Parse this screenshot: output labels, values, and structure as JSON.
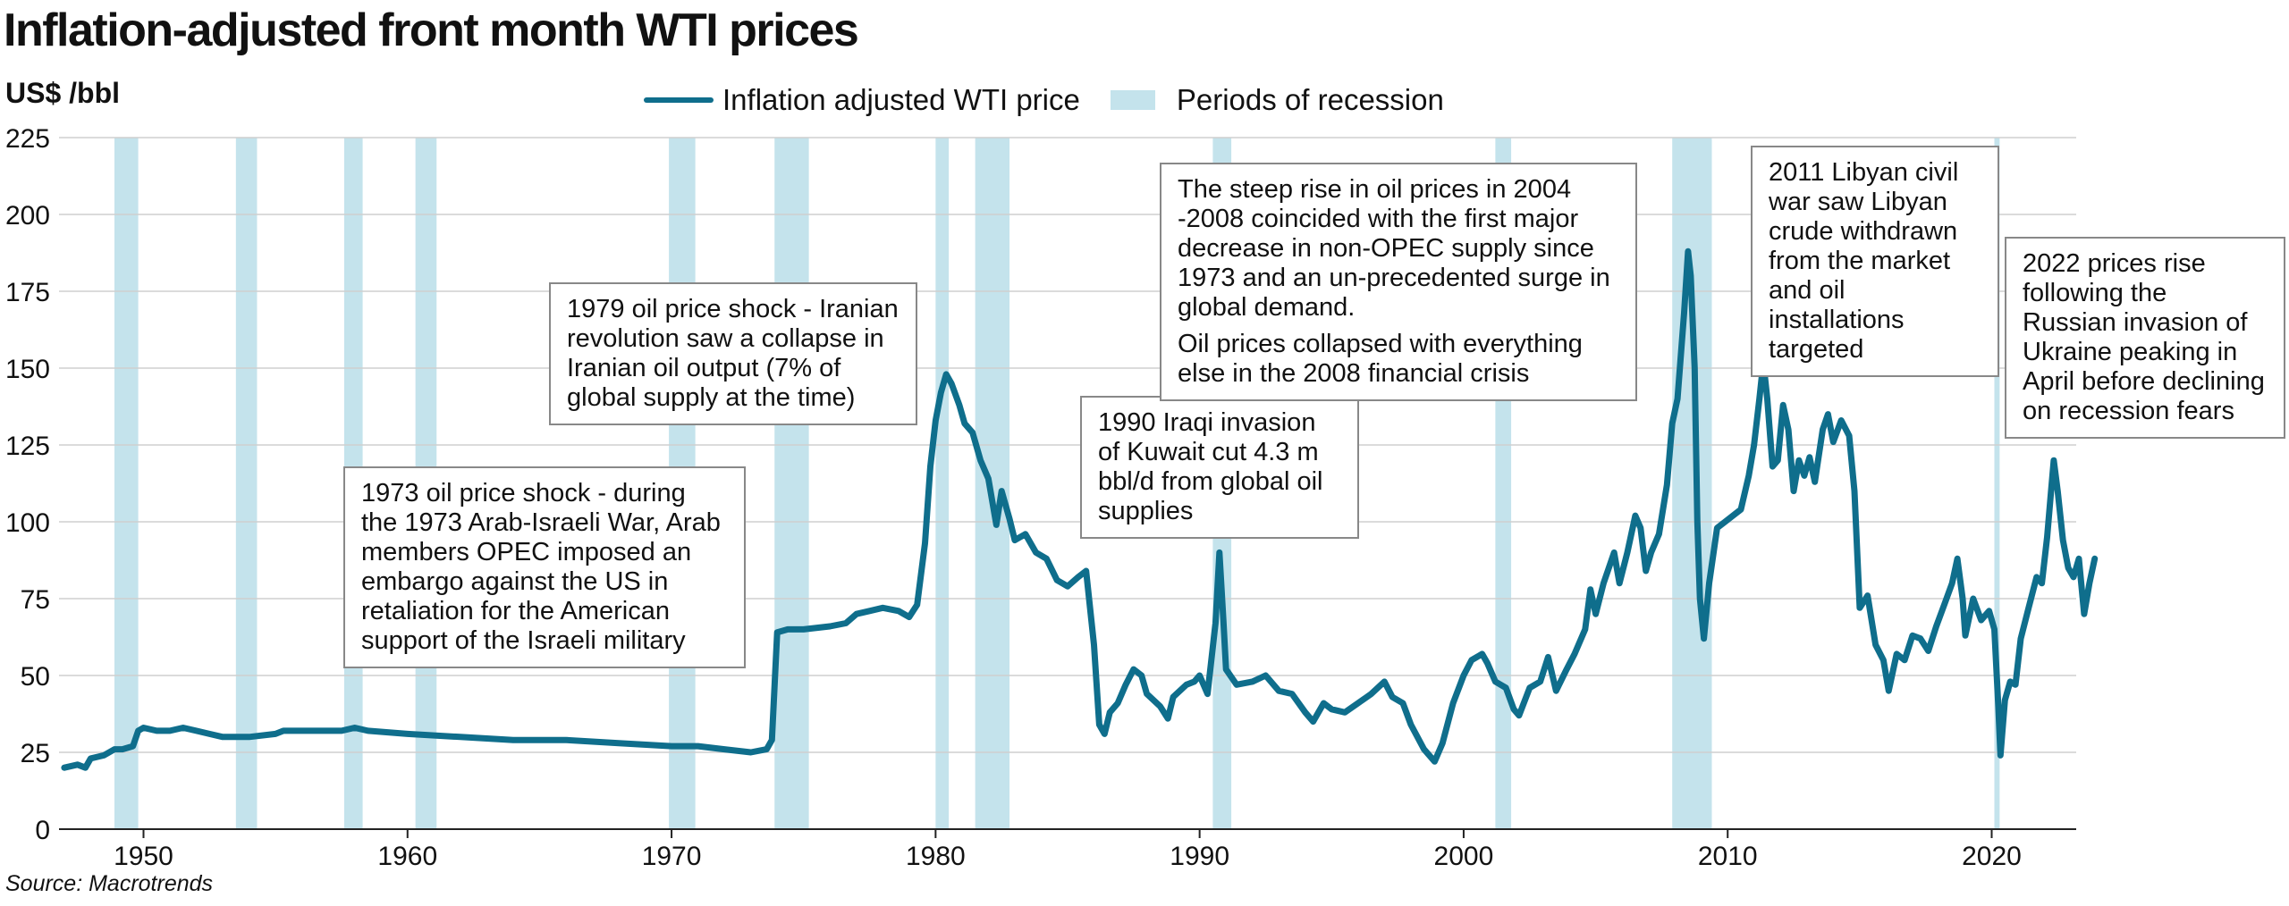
{
  "title": "Inflation-adjusted front month WTI prices",
  "y_unit": "US$ /bbl",
  "source": "Source: Macrotrends",
  "colors": {
    "line": "#0f6e8c",
    "recession": "#c4e3ec",
    "grid": "#cfcfcf"
  },
  "chart_data": {
    "type": "line",
    "title": "Inflation-adjusted front month WTI prices",
    "ylabel": "US$ /bbl",
    "ylim": [
      0,
      225
    ],
    "xlim": [
      1946.8,
      2023.2
    ],
    "yticks": [
      0,
      25,
      50,
      75,
      100,
      125,
      150,
      175,
      200,
      225
    ],
    "xticks": [
      1950,
      1960,
      1970,
      1980,
      1990,
      2000,
      2010,
      2020
    ],
    "grid": true,
    "legend": {
      "position": "top-center",
      "items": [
        {
          "label": "Inflation adjusted WTI price",
          "kind": "line"
        },
        {
          "label": "Periods of recession",
          "kind": "band"
        }
      ]
    },
    "series": [
      {
        "name": "Inflation adjusted WTI price",
        "points": [
          [
            1947.0,
            20
          ],
          [
            1947.5,
            21
          ],
          [
            1947.8,
            20
          ],
          [
            1948.0,
            23
          ],
          [
            1948.5,
            24
          ],
          [
            1948.9,
            26
          ],
          [
            1949.2,
            26
          ],
          [
            1949.6,
            27
          ],
          [
            1949.8,
            32
          ],
          [
            1950.0,
            33
          ],
          [
            1950.5,
            32
          ],
          [
            1951.0,
            32
          ],
          [
            1951.5,
            33
          ],
          [
            1952.0,
            32
          ],
          [
            1952.5,
            31
          ],
          [
            1953.0,
            30
          ],
          [
            1954.0,
            30
          ],
          [
            1955.0,
            31
          ],
          [
            1955.3,
            32
          ],
          [
            1956.0,
            32
          ],
          [
            1957.0,
            32
          ],
          [
            1957.5,
            32
          ],
          [
            1958.0,
            33
          ],
          [
            1958.5,
            32
          ],
          [
            1960.0,
            31
          ],
          [
            1962.0,
            30
          ],
          [
            1964.0,
            29
          ],
          [
            1966.0,
            29
          ],
          [
            1968.0,
            28
          ],
          [
            1970.0,
            27
          ],
          [
            1971.0,
            27
          ],
          [
            1972.0,
            26
          ],
          [
            1973.0,
            25
          ],
          [
            1973.6,
            26
          ],
          [
            1973.8,
            29
          ],
          [
            1974.0,
            64
          ],
          [
            1974.4,
            65
          ],
          [
            1975.0,
            65
          ],
          [
            1976.0,
            66
          ],
          [
            1976.6,
            67
          ],
          [
            1977.0,
            70
          ],
          [
            1977.5,
            71
          ],
          [
            1978.0,
            72
          ],
          [
            1978.6,
            71
          ],
          [
            1979.0,
            69
          ],
          [
            1979.3,
            73
          ],
          [
            1979.6,
            93
          ],
          [
            1979.8,
            118
          ],
          [
            1980.0,
            133
          ],
          [
            1980.2,
            142
          ],
          [
            1980.4,
            148
          ],
          [
            1980.6,
            145
          ],
          [
            1980.9,
            138
          ],
          [
            1981.1,
            132
          ],
          [
            1981.4,
            129
          ],
          [
            1981.7,
            120
          ],
          [
            1982.0,
            114
          ],
          [
            1982.3,
            99
          ],
          [
            1982.5,
            110
          ],
          [
            1982.8,
            101
          ],
          [
            1983.0,
            94
          ],
          [
            1983.4,
            96
          ],
          [
            1983.8,
            90
          ],
          [
            1984.2,
            88
          ],
          [
            1984.6,
            81
          ],
          [
            1985.0,
            79
          ],
          [
            1985.4,
            82
          ],
          [
            1985.7,
            84
          ],
          [
            1986.0,
            60
          ],
          [
            1986.2,
            34
          ],
          [
            1986.4,
            31
          ],
          [
            1986.6,
            38
          ],
          [
            1986.9,
            41
          ],
          [
            1987.2,
            47
          ],
          [
            1987.5,
            52
          ],
          [
            1987.8,
            50
          ],
          [
            1988.0,
            44
          ],
          [
            1988.5,
            40
          ],
          [
            1988.8,
            36
          ],
          [
            1989.0,
            43
          ],
          [
            1989.5,
            47
          ],
          [
            1989.8,
            48
          ],
          [
            1990.0,
            50
          ],
          [
            1990.3,
            44
          ],
          [
            1990.6,
            67
          ],
          [
            1990.75,
            90
          ],
          [
            1990.9,
            68
          ],
          [
            1991.0,
            52
          ],
          [
            1991.4,
            47
          ],
          [
            1992.0,
            48
          ],
          [
            1992.5,
            50
          ],
          [
            1993.0,
            45
          ],
          [
            1993.5,
            44
          ],
          [
            1994.0,
            38
          ],
          [
            1994.3,
            35
          ],
          [
            1994.7,
            41
          ],
          [
            1995.0,
            39
          ],
          [
            1995.5,
            38
          ],
          [
            1996.0,
            41
          ],
          [
            1996.5,
            44
          ],
          [
            1997.0,
            48
          ],
          [
            1997.3,
            43
          ],
          [
            1997.7,
            41
          ],
          [
            1998.0,
            34
          ],
          [
            1998.5,
            26
          ],
          [
            1998.9,
            22
          ],
          [
            1999.2,
            28
          ],
          [
            1999.6,
            41
          ],
          [
            2000.0,
            50
          ],
          [
            2000.3,
            55
          ],
          [
            2000.7,
            57
          ],
          [
            2000.9,
            54
          ],
          [
            2001.2,
            48
          ],
          [
            2001.6,
            46
          ],
          [
            2001.9,
            39
          ],
          [
            2002.1,
            37
          ],
          [
            2002.5,
            46
          ],
          [
            2002.9,
            48
          ],
          [
            2003.2,
            56
          ],
          [
            2003.5,
            45
          ],
          [
            2003.9,
            52
          ],
          [
            2004.2,
            57
          ],
          [
            2004.6,
            65
          ],
          [
            2004.8,
            78
          ],
          [
            2005.0,
            70
          ],
          [
            2005.3,
            80
          ],
          [
            2005.7,
            90
          ],
          [
            2005.9,
            80
          ],
          [
            2006.2,
            90
          ],
          [
            2006.5,
            102
          ],
          [
            2006.7,
            98
          ],
          [
            2006.9,
            84
          ],
          [
            2007.1,
            90
          ],
          [
            2007.4,
            96
          ],
          [
            2007.7,
            112
          ],
          [
            2007.9,
            132
          ],
          [
            2008.1,
            140
          ],
          [
            2008.35,
            168
          ],
          [
            2008.5,
            188
          ],
          [
            2008.6,
            180
          ],
          [
            2008.75,
            150
          ],
          [
            2008.85,
            100
          ],
          [
            2008.95,
            75
          ],
          [
            2009.1,
            62
          ],
          [
            2009.3,
            80
          ],
          [
            2009.6,
            98
          ],
          [
            2009.9,
            100
          ],
          [
            2010.2,
            102
          ],
          [
            2010.5,
            104
          ],
          [
            2010.8,
            115
          ],
          [
            2011.0,
            125
          ],
          [
            2011.2,
            140
          ],
          [
            2011.35,
            152
          ],
          [
            2011.5,
            140
          ],
          [
            2011.7,
            118
          ],
          [
            2011.9,
            120
          ],
          [
            2012.1,
            138
          ],
          [
            2012.3,
            130
          ],
          [
            2012.5,
            110
          ],
          [
            2012.7,
            120
          ],
          [
            2012.9,
            115
          ],
          [
            2013.1,
            121
          ],
          [
            2013.3,
            113
          ],
          [
            2013.6,
            130
          ],
          [
            2013.8,
            135
          ],
          [
            2014.0,
            126
          ],
          [
            2014.3,
            133
          ],
          [
            2014.6,
            128
          ],
          [
            2014.8,
            110
          ],
          [
            2015.0,
            72
          ],
          [
            2015.3,
            76
          ],
          [
            2015.6,
            60
          ],
          [
            2015.9,
            55
          ],
          [
            2016.1,
            45
          ],
          [
            2016.4,
            57
          ],
          [
            2016.7,
            55
          ],
          [
            2017.0,
            63
          ],
          [
            2017.3,
            62
          ],
          [
            2017.6,
            58
          ],
          [
            2017.9,
            66
          ],
          [
            2018.2,
            73
          ],
          [
            2018.5,
            80
          ],
          [
            2018.7,
            88
          ],
          [
            2018.9,
            75
          ],
          [
            2019.0,
            63
          ],
          [
            2019.3,
            75
          ],
          [
            2019.6,
            68
          ],
          [
            2019.9,
            71
          ],
          [
            2020.1,
            65
          ],
          [
            2020.25,
            40
          ],
          [
            2020.33,
            24
          ],
          [
            2020.5,
            42
          ],
          [
            2020.7,
            48
          ],
          [
            2020.9,
            47
          ],
          [
            2021.1,
            62
          ],
          [
            2021.4,
            72
          ],
          [
            2021.7,
            82
          ],
          [
            2021.9,
            80
          ],
          [
            2022.1,
            95
          ],
          [
            2022.25,
            110
          ],
          [
            2022.35,
            120
          ],
          [
            2022.5,
            110
          ],
          [
            2022.7,
            94
          ],
          [
            2022.9,
            85
          ],
          [
            2023.1,
            82
          ],
          [
            2023.3,
            88
          ],
          [
            2023.5,
            70
          ],
          [
            2023.7,
            80
          ],
          [
            2023.9,
            88
          ]
        ]
      }
    ],
    "recessions": [
      [
        1948.9,
        1949.8
      ],
      [
        1953.5,
        1954.3
      ],
      [
        1957.6,
        1958.3
      ],
      [
        1960.3,
        1961.1
      ],
      [
        1969.9,
        1970.9
      ],
      [
        1973.9,
        1975.2
      ],
      [
        1980.0,
        1980.5
      ],
      [
        1981.5,
        1982.8
      ],
      [
        1990.5,
        1991.2
      ],
      [
        2001.2,
        2001.8
      ],
      [
        2007.9,
        2009.4
      ],
      [
        2020.1,
        2020.3
      ]
    ]
  },
  "annotations": [
    {
      "id": "1973",
      "paragraphs": [
        "1973 oil price shock - during the 1973 Arab-Israeli War, Arab members OPEC imposed an embargo against the US in retaliation for the American support of the Israeli military"
      ]
    },
    {
      "id": "1979",
      "paragraphs": [
        "1979 oil price shock - Iranian revolution saw a collapse in Iranian oil output (7% of global supply at the time)"
      ]
    },
    {
      "id": "1990",
      "paragraphs": [
        "1990 Iraqi invasion of Kuwait cut 4.3 m bbl/d from global oil supplies"
      ]
    },
    {
      "id": "2004",
      "paragraphs": [
        "The steep rise in oil prices in 2004 -2008 coincided with the first major decrease in non-OPEC supply since 1973 and an un-precedented surge in global demand.",
        "Oil prices collapsed with everything else in the 2008 financial crisis"
      ]
    },
    {
      "id": "2011",
      "paragraphs": [
        "2011 Libyan civil war saw Libyan crude withdrawn from the market and oil installations targeted"
      ]
    },
    {
      "id": "2022",
      "paragraphs": [
        "2022 prices rise following the Russian invasion of Ukraine peaking in April before declining on recession fears"
      ]
    }
  ]
}
